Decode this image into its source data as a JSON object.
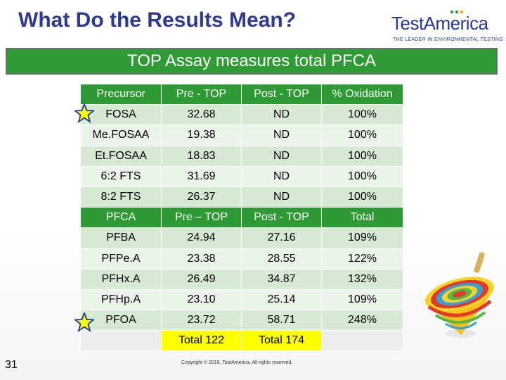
{
  "header": {
    "title": "What Do the Results Mean?",
    "logo_text": "TestAmerica",
    "logo_tagline": "THE LEADER IN ENVIRONMENTAL TESTING"
  },
  "banner": {
    "text": "TOP Assay measures total PFCA"
  },
  "table": {
    "precursor_header": [
      "Precursor",
      "Pre - TOP",
      "Post - TOP",
      "% Oxidation"
    ],
    "precursor_rows": [
      [
        "FOSA",
        "32.68",
        "ND",
        "100%"
      ],
      [
        "Me.FOSAA",
        "19.38",
        "ND",
        "100%"
      ],
      [
        "Et.FOSAA",
        "18.83",
        "ND",
        "100%"
      ],
      [
        "6:2 FTS",
        "31.69",
        "ND",
        "100%"
      ],
      [
        "8:2 FTS",
        "26.37",
        "ND",
        "100%"
      ]
    ],
    "pfca_header": [
      "PFCA",
      "Pre – TOP",
      "Post - TOP",
      "Total"
    ],
    "pfca_rows": [
      [
        "PFBA",
        "24.94",
        "27.16",
        "109%"
      ],
      [
        "PFPe.A",
        "23.38",
        "28.55",
        "122%"
      ],
      [
        "PFHx.A",
        "26.49",
        "34.87",
        "132%"
      ],
      [
        "PFHp.A",
        "23.10",
        "25.14",
        "109%"
      ],
      [
        "PFOA",
        "23.72",
        "58.71",
        "248%"
      ]
    ],
    "totals": [
      "",
      "Total 122",
      "Total 174",
      ""
    ]
  },
  "footer": {
    "page_number": "31",
    "copyright": "Copyright © 2018, TestAmerica. All rights reserved."
  },
  "colors": {
    "title": "#2f3a8c",
    "banner": "#2f9b34",
    "header_row": "#2e9a33",
    "row_dark": "#d6e9d3",
    "row_light": "#eaf4e8",
    "highlight": "#ffff00"
  }
}
